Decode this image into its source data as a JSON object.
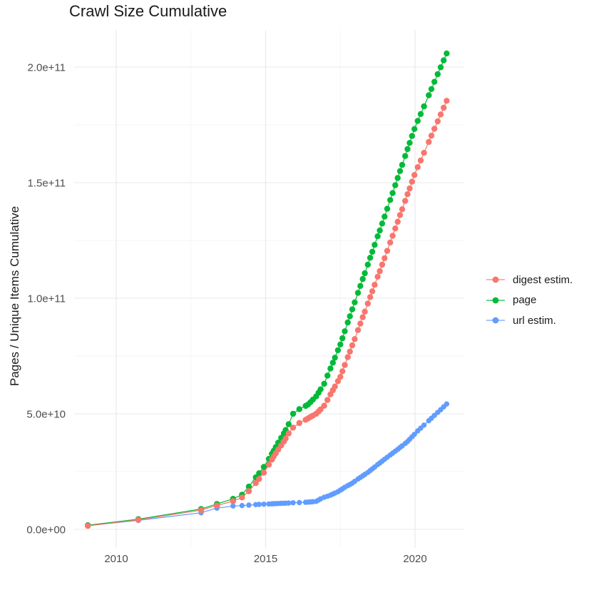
{
  "title": "Crawl Size Cumulative",
  "axes": {
    "x": {
      "ticks": [
        "2010",
        "2015",
        "2020"
      ],
      "tick_years": [
        2010,
        2015,
        2020
      ],
      "minor_years": [
        2012.5,
        2017.5
      ],
      "range_years": [
        2008.45,
        2021.65
      ]
    },
    "y": {
      "title": "Pages / Unique Items Cumulative",
      "ticks": [
        "0.0e+00",
        "5.0e+10",
        "1.0e+11",
        "1.5e+11",
        "2.0e+11"
      ],
      "tick_values_e9": [
        0,
        50,
        100,
        150,
        200
      ],
      "minor_values_e9": [
        25,
        75,
        125,
        175
      ],
      "range_e9": [
        -8,
        216
      ]
    }
  },
  "colors": {
    "digest": "#F8766D",
    "page": "#00BA38",
    "url": "#619CFF",
    "grid_major": "#E8E8E8",
    "grid_minor": "#F4F4F4",
    "tick_text": "#4d4d4d",
    "title_text": "#1a1a1a",
    "background": "#ffffff"
  },
  "legend": {
    "position": "right",
    "labels": [
      "digest estim.",
      "page",
      "url estim."
    ]
  },
  "chart_data": {
    "type": "line",
    "title": "Crawl Size Cumulative",
    "xlabel": "",
    "ylabel": "Pages / Unique Items Cumulative",
    "unit_note": "values are cumulative counts in billions (1e9); y axis shown 0.0e+00 to 2.0e+11",
    "ylim_e9": [
      0,
      216
    ],
    "xlim_years": [
      2008.45,
      2021.65
    ],
    "grid": true,
    "legend_position": "right",
    "x_years": [
      2009.05,
      2010.74,
      2012.84,
      2013.37,
      2013.91,
      2014.21,
      2014.44,
      2014.67,
      2014.78,
      2014.94,
      2015.11,
      2015.21,
      2015.27,
      2015.34,
      2015.42,
      2015.52,
      2015.61,
      2015.67,
      2015.77,
      2015.92,
      2016.13,
      2016.34,
      2016.42,
      2016.5,
      2016.58,
      2016.69,
      2016.77,
      2016.84,
      2016.96,
      2017.07,
      2017.17,
      2017.25,
      2017.32,
      2017.42,
      2017.5,
      2017.57,
      2017.65,
      2017.75,
      2017.82,
      2017.9,
      2017.98,
      2018.09,
      2018.17,
      2018.25,
      2018.32,
      2018.42,
      2018.5,
      2018.57,
      2018.65,
      2018.75,
      2018.82,
      2018.9,
      2018.98,
      2019.07,
      2019.17,
      2019.25,
      2019.34,
      2019.42,
      2019.5,
      2019.57,
      2019.67,
      2019.75,
      2019.82,
      2019.9,
      2019.98,
      2020.09,
      2020.19,
      2020.3,
      2020.46,
      2020.55,
      2020.65,
      2020.76,
      2020.86,
      2020.96,
      2021.06
    ],
    "series": [
      {
        "name": "digest estim.",
        "color": "#F8766D",
        "point_radius": 4.2,
        "values_e9": [
          1.5,
          4.1,
          8.3,
          10.3,
          12.2,
          13.8,
          16.5,
          20.0,
          21.8,
          24.5,
          28.0,
          30.2,
          31.5,
          32.9,
          34.5,
          36.3,
          38.0,
          39.3,
          41.5,
          44.0,
          46.0,
          47.4,
          48.0,
          48.6,
          49.2,
          50.0,
          51.0,
          51.9,
          53.5,
          56.0,
          58.4,
          60.2,
          61.8,
          64.1,
          66.0,
          68.4,
          71.1,
          74.5,
          76.9,
          79.6,
          82.3,
          86.2,
          89.0,
          91.8,
          94.2,
          97.7,
          100.5,
          103.0,
          105.8,
          109.3,
          111.7,
          114.5,
          117.3,
          120.5,
          124.1,
          127.0,
          130.2,
          133.1,
          136.0,
          138.5,
          142.1,
          145.0,
          147.5,
          150.4,
          153.3,
          156.7,
          159.6,
          162.9,
          167.6,
          170.3,
          173.3,
          176.5,
          179.5,
          182.4,
          185.4
        ]
      },
      {
        "name": "page",
        "color": "#00BA38",
        "point_radius": 4.2,
        "values_e9": [
          1.8,
          4.4,
          8.8,
          11.0,
          13.2,
          15.0,
          18.5,
          22.5,
          24.3,
          27.0,
          30.5,
          32.7,
          34.0,
          35.6,
          37.5,
          39.6,
          41.5,
          43.0,
          45.5,
          50.0,
          52.0,
          53.4,
          54.0,
          55.0,
          56.1,
          57.5,
          59.1,
          60.6,
          63.0,
          66.5,
          69.6,
          72.1,
          74.3,
          77.5,
          80.0,
          82.7,
          85.7,
          89.5,
          92.2,
          95.2,
          98.2,
          102.3,
          105.3,
          108.3,
          110.8,
          114.5,
          117.5,
          120.1,
          123.1,
          126.8,
          129.3,
          132.3,
          135.3,
          138.7,
          142.5,
          145.5,
          148.9,
          152.0,
          155.0,
          157.7,
          161.5,
          164.5,
          167.2,
          170.2,
          173.2,
          176.7,
          179.7,
          183.0,
          187.8,
          190.5,
          193.6,
          196.9,
          199.9,
          202.9,
          205.9
        ]
      },
      {
        "name": "url estim.",
        "color": "#619CFF",
        "point_radius": 3.7,
        "values_e9": [
          1.6,
          3.9,
          7.2,
          9.2,
          10.1,
          10.3,
          10.5,
          10.7,
          10.8,
          10.9,
          11.0,
          11.06,
          11.1,
          11.15,
          11.2,
          11.26,
          11.31,
          11.34,
          11.4,
          11.5,
          11.6,
          11.74,
          11.8,
          11.89,
          11.98,
          12.1,
          12.69,
          13.2,
          13.9,
          14.33,
          14.8,
          15.28,
          15.7,
          16.3,
          16.96,
          17.54,
          18.2,
          18.92,
          19.42,
          20.0,
          20.76,
          21.8,
          22.48,
          23.16,
          23.75,
          24.6,
          25.42,
          26.14,
          26.97,
          28.0,
          28.7,
          29.5,
          30.3,
          31.2,
          32.17,
          32.95,
          33.82,
          34.6,
          35.42,
          36.14,
          37.17,
          38.0,
          38.95,
          40.04,
          41.12,
          42.6,
          43.79,
          45.1,
          47.0,
          48.08,
          49.28,
          50.6,
          51.8,
          53.03,
          54.25
        ]
      }
    ]
  }
}
